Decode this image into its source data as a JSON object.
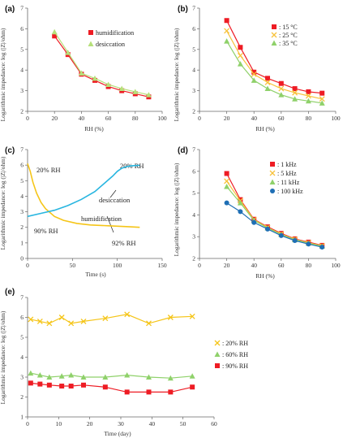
{
  "chart_data": [
    {
      "id": "a",
      "type": "line",
      "panel_label": "(a)",
      "xlabel": "RH (%)",
      "ylabel": "Logarithmic impedance: log (|Z|/ohm)",
      "xlim": [
        0,
        100
      ],
      "ylim": [
        2,
        7
      ],
      "xticks": [
        0,
        20,
        40,
        60,
        80,
        100
      ],
      "yticks": [
        2,
        3,
        4,
        5,
        6,
        7
      ],
      "legend_position": "top-right",
      "series": [
        {
          "name": "humidification",
          "color": "#ee1c24",
          "marker": "square",
          "x": [
            20,
            30,
            40,
            50,
            60,
            70,
            80,
            90
          ],
          "y": [
            5.65,
            4.75,
            3.8,
            3.5,
            3.2,
            3.0,
            2.85,
            2.7
          ]
        },
        {
          "name": "desiccation",
          "color": "#b6e07a",
          "marker": "triangle",
          "x": [
            20,
            30,
            40,
            50,
            60,
            70,
            80,
            90
          ],
          "y": [
            5.85,
            4.85,
            3.85,
            3.6,
            3.3,
            3.1,
            2.95,
            2.8
          ]
        }
      ]
    },
    {
      "id": "b",
      "type": "line",
      "panel_label": "(b)",
      "xlabel": "RH (%)",
      "ylabel": "Logarithmic impedance: log (|Z|/ohm)",
      "xlim": [
        0,
        100
      ],
      "ylim": [
        2,
        7
      ],
      "xticks": [
        0,
        20,
        40,
        60,
        80,
        100
      ],
      "yticks": [
        2,
        3,
        4,
        5,
        6,
        7
      ],
      "legend_position": "top-right",
      "series": [
        {
          "name": ": 15 °C",
          "color": "#ee1c24",
          "marker": "square",
          "x": [
            20,
            30,
            40,
            50,
            60,
            70,
            80,
            90
          ],
          "y": [
            6.4,
            5.1,
            3.9,
            3.6,
            3.35,
            3.1,
            2.95,
            2.88
          ]
        },
        {
          "name": ": 25 °C",
          "color": "#f7c23c",
          "marker": "cross",
          "x": [
            20,
            30,
            40,
            50,
            60,
            70,
            80,
            90
          ],
          "y": [
            5.9,
            4.7,
            3.8,
            3.4,
            3.1,
            2.9,
            2.75,
            2.6
          ]
        },
        {
          "name": ": 35 °C",
          "color": "#8fd16a",
          "marker": "triangle",
          "x": [
            20,
            30,
            40,
            50,
            60,
            70,
            80,
            90
          ],
          "y": [
            5.4,
            4.3,
            3.5,
            3.1,
            2.8,
            2.6,
            2.5,
            2.4
          ]
        }
      ]
    },
    {
      "id": "c",
      "type": "line",
      "panel_label": "(c)",
      "xlabel": "Time (s)",
      "ylabel": "Logarithmic impedance: log (|Z|/ohm)",
      "xlim": [
        0,
        150
      ],
      "ylim": [
        0,
        7
      ],
      "xticks": [
        0,
        50,
        100,
        150
      ],
      "yticks": [
        0,
        1,
        2,
        3,
        4,
        5,
        6,
        7
      ],
      "annotations": [
        "20% RH",
        "20% RH",
        "desiccation",
        "humidification",
        "90% RH",
        "92% RH"
      ],
      "series": [
        {
          "name": "humidification",
          "color": "#f5c518",
          "marker": "none",
          "x": [
            0,
            3,
            6,
            10,
            15,
            20,
            30,
            40,
            55,
            70,
            90,
            110,
            125
          ],
          "y": [
            6.1,
            5.6,
            4.9,
            4.2,
            3.6,
            3.2,
            2.7,
            2.45,
            2.25,
            2.15,
            2.1,
            2.05,
            2.0
          ]
        },
        {
          "name": "desiccation",
          "color": "#29b6e0",
          "marker": "none",
          "x": [
            0,
            15,
            30,
            45,
            60,
            75,
            85,
            95,
            100,
            105,
            110,
            115,
            120,
            125
          ],
          "y": [
            2.7,
            2.9,
            3.1,
            3.4,
            3.8,
            4.3,
            4.8,
            5.3,
            5.6,
            5.8,
            5.9,
            5.95,
            5.97,
            5.98
          ]
        }
      ]
    },
    {
      "id": "d",
      "type": "line",
      "panel_label": "(d)",
      "xlabel": "RH (%)",
      "ylabel": "Logarithmic impedance: log (|Z|/ohm)",
      "xlim": [
        0,
        100
      ],
      "ylim": [
        2,
        7
      ],
      "xticks": [
        0,
        20,
        40,
        60,
        80,
        100
      ],
      "yticks": [
        2,
        3,
        4,
        5,
        6,
        7
      ],
      "legend_position": "top-right",
      "series": [
        {
          "name": ": 1 kHz",
          "color": "#ee1c24",
          "marker": "square",
          "x": [
            20,
            30,
            40,
            50,
            60,
            70,
            80,
            90
          ],
          "y": [
            5.9,
            4.7,
            3.8,
            3.45,
            3.15,
            2.9,
            2.75,
            2.6
          ]
        },
        {
          "name": ": 5 kHz",
          "color": "#f7c23c",
          "marker": "cross",
          "x": [
            20,
            30,
            40,
            50,
            60,
            70,
            80,
            90
          ],
          "y": [
            5.55,
            4.65,
            3.78,
            3.42,
            3.12,
            2.88,
            2.72,
            2.58
          ]
        },
        {
          "name": ": 11 kHz",
          "color": "#8fd16a",
          "marker": "triangle",
          "x": [
            20,
            30,
            40,
            50,
            60,
            70,
            80,
            90
          ],
          "y": [
            5.3,
            4.55,
            3.75,
            3.4,
            3.1,
            2.86,
            2.7,
            2.56
          ]
        },
        {
          "name": ": 100 kHz",
          "color": "#1f6fb5",
          "marker": "circle",
          "x": [
            20,
            30,
            40,
            50,
            60,
            70,
            80,
            90
          ],
          "y": [
            4.55,
            4.15,
            3.65,
            3.35,
            3.05,
            2.82,
            2.66,
            2.52
          ]
        }
      ]
    },
    {
      "id": "e",
      "type": "line",
      "panel_label": "(e)",
      "xlabel": "Time (day)",
      "ylabel": "Logarithmic impedance: log (|Z|/ohm)",
      "xlim": [
        0,
        60
      ],
      "ylim": [
        1,
        7
      ],
      "xticks": [
        0,
        10,
        20,
        30,
        40,
        50,
        60
      ],
      "yticks": [
        1,
        2,
        3,
        4,
        5,
        6,
        7
      ],
      "legend_position": "right",
      "series": [
        {
          "name": ": 20% RH",
          "color": "#f5c518",
          "marker": "cross",
          "x": [
            1,
            4,
            7,
            11,
            14,
            18,
            25,
            32,
            39,
            46,
            53
          ],
          "y": [
            5.9,
            5.8,
            5.7,
            6.0,
            5.7,
            5.8,
            5.95,
            6.15,
            5.7,
            6.0,
            6.05
          ]
        },
        {
          "name": ": 60% RH",
          "color": "#8fd16a",
          "marker": "triangle",
          "x": [
            1,
            4,
            7,
            11,
            14,
            18,
            25,
            32,
            39,
            46,
            53
          ],
          "y": [
            3.2,
            3.1,
            3.0,
            3.05,
            3.1,
            3.0,
            3.0,
            3.1,
            3.0,
            2.95,
            3.05
          ]
        },
        {
          "name": ": 90% RH",
          "color": "#ee1c24",
          "marker": "square",
          "x": [
            1,
            4,
            7,
            11,
            14,
            18,
            25,
            32,
            39,
            46,
            53
          ],
          "y": [
            2.7,
            2.65,
            2.6,
            2.55,
            2.55,
            2.6,
            2.5,
            2.25,
            2.25,
            2.25,
            2.5
          ]
        }
      ]
    }
  ]
}
